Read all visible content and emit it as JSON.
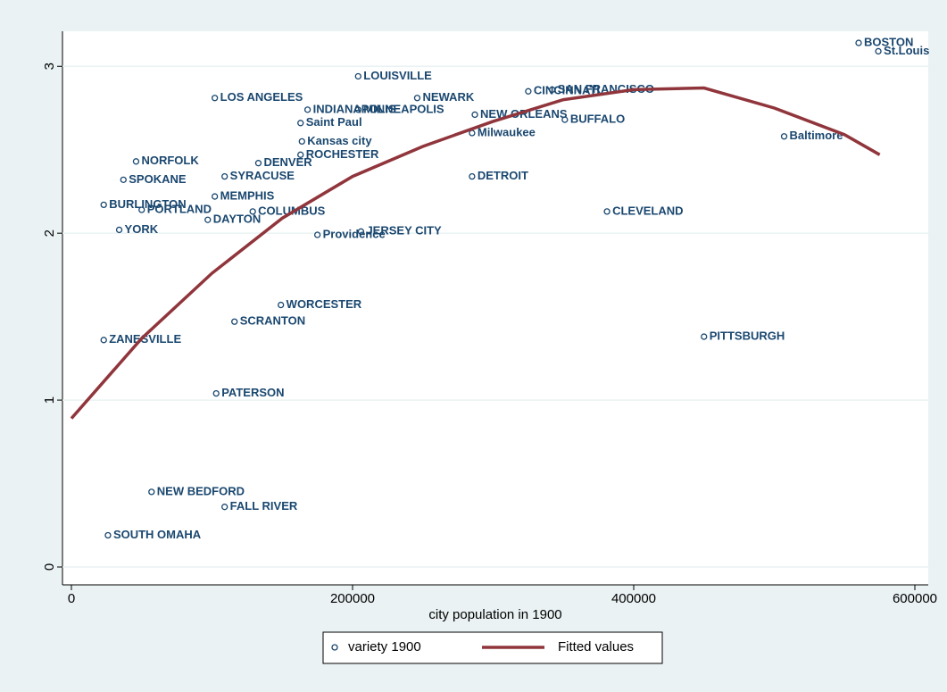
{
  "chart_data": {
    "type": "scatter",
    "xlabel": "city population in 1900",
    "xlim": [
      -6349,
      609524
    ],
    "ylim": [
      -0.107,
      3.21
    ],
    "xticks": [
      0,
      200000,
      400000,
      600000
    ],
    "yticks": [
      0,
      1,
      2,
      3
    ],
    "grid": true,
    "legend": "bottom",
    "series": [
      {
        "name": "variety 1900",
        "color": "#1a476f",
        "labels": [
          "BOSTON",
          "St.Louis",
          "LOUISVILLE",
          "LOS ANGELES",
          "NEWARK",
          "SAN FRANCISCO",
          "CINCINNATI",
          "INDIANAPOLIS",
          "MINNEAPOLIS",
          "NEW ORLEANS",
          "BUFFALO",
          "Saint Paul",
          "Milwaukee",
          "Kansas city",
          "ROCHESTER",
          "Baltimore",
          "DENVER",
          "NORFOLK",
          "SYRACUSE",
          "SPOKANE",
          "DETROIT",
          "MEMPHIS",
          "BURLINGTON",
          "CLEVELAND",
          "PORTLAND",
          "COLUMBUS",
          "JERSEY CITY",
          "Providence",
          "DAYTON",
          "YORK",
          "PITTSBURGH",
          "SCRANTON",
          "PATERSON",
          "ZANESVILLE",
          "WORCESTER",
          "NEW BEDFORD",
          "FALL RIVER",
          "SOUTH OMAHA"
        ],
        "x": [
          560000,
          574000,
          204000,
          102000,
          246000,
          342000,
          325000,
          168000,
          204000,
          287000,
          351000,
          163000,
          285000,
          164000,
          163000,
          507000,
          133000,
          46000,
          109000,
          37000,
          285000,
          102000,
          23000,
          381000,
          50000,
          129000,
          206000,
          175000,
          97000,
          34000,
          450000,
          116000,
          103000,
          23000,
          149000,
          57000,
          109000,
          26000
        ],
        "values": [
          3.14,
          3.09,
          2.94,
          2.81,
          2.81,
          2.86,
          2.85,
          2.74,
          2.74,
          2.71,
          2.68,
          2.66,
          2.6,
          2.55,
          2.47,
          2.58,
          2.42,
          2.43,
          2.34,
          2.32,
          2.34,
          2.22,
          2.17,
          2.13,
          2.14,
          2.13,
          2.01,
          1.99,
          2.08,
          2.02,
          1.38,
          1.47,
          1.04,
          1.36,
          1.57,
          0.45,
          0.36,
          0.19
        ]
      },
      {
        "name": "Fitted values",
        "type": "line",
        "color": "#90353b",
        "x": [
          0,
          50000,
          100000,
          150000,
          200000,
          250000,
          300000,
          350000,
          400000,
          450000,
          500000,
          550000,
          575000
        ],
        "values": [
          0.89,
          1.37,
          1.76,
          2.09,
          2.34,
          2.52,
          2.67,
          2.8,
          2.86,
          2.87,
          2.75,
          2.59,
          2.47
        ]
      }
    ]
  }
}
